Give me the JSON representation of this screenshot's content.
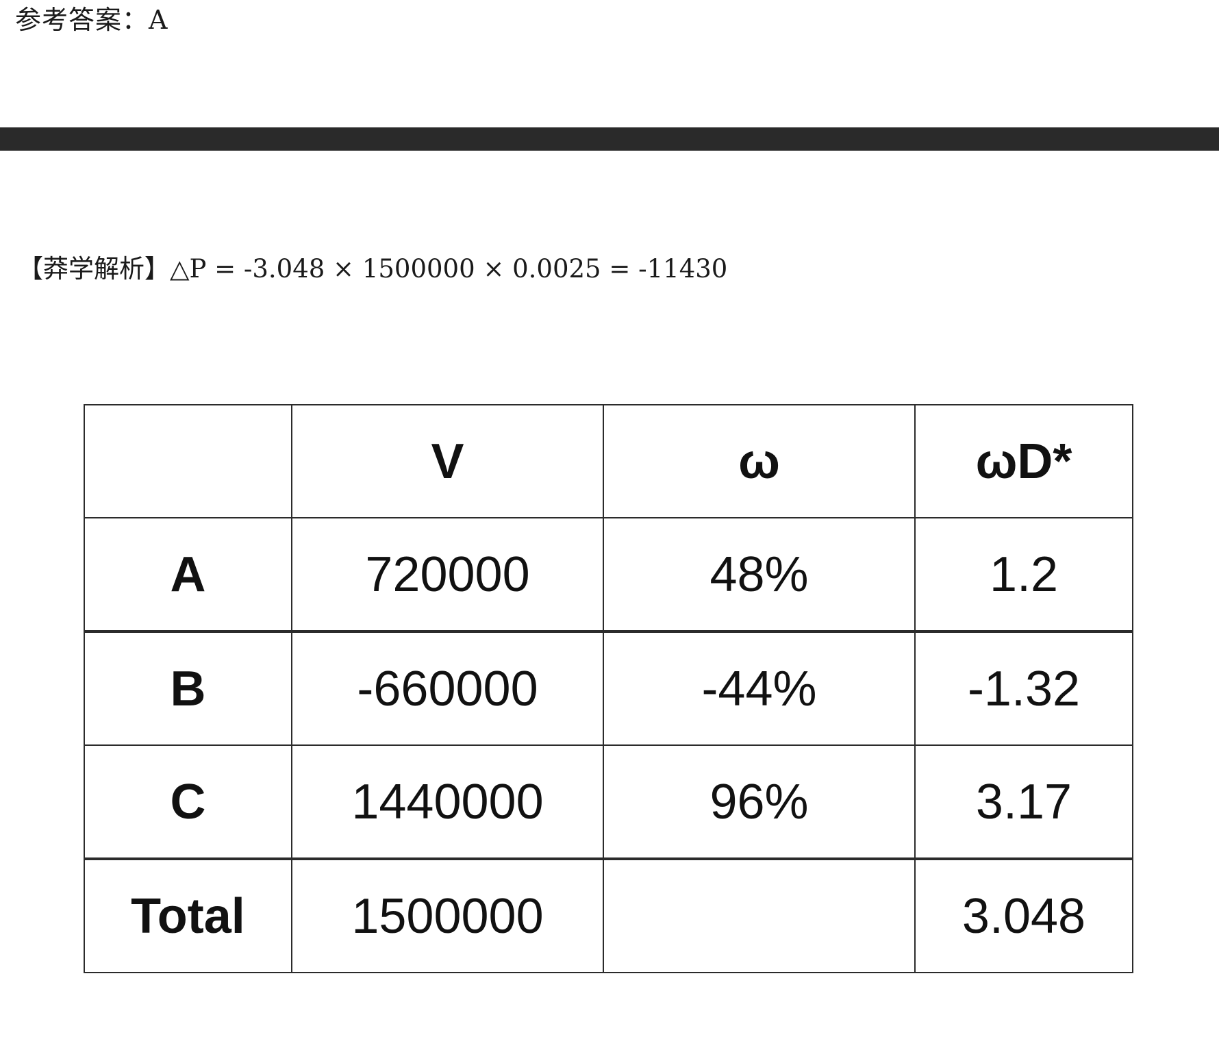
{
  "answer": {
    "text": "参考答案：A"
  },
  "explanation": {
    "text": "【莽学解析】△P = -3.048 × 1500000 × 0.0025 = -11430"
  },
  "table": {
    "headers": [
      "",
      "V",
      "ω",
      "ωD*"
    ],
    "rows": [
      {
        "label": "A",
        "v": "720000",
        "w": "48%",
        "wd": "1.2"
      },
      {
        "label": "B",
        "v": "-660000",
        "w": "-44%",
        "wd": "-1.32"
      },
      {
        "label": "C",
        "v": "1440000",
        "w": "96%",
        "wd": "3.17"
      },
      {
        "label": "Total",
        "v": "1500000",
        "w": "",
        "wd": "3.048"
      }
    ]
  }
}
